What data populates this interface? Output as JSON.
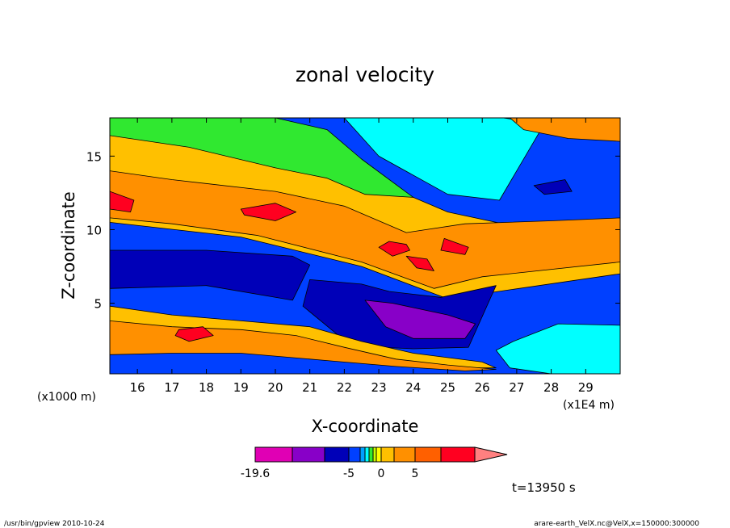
{
  "chart_data": {
    "type": "heatmap",
    "title": "zonal velocity",
    "xlabel": "X-coordinate",
    "ylabel": "Z-coordinate",
    "x_unit_label": "(x1E4 m)",
    "y_unit_label": "(x1000 m)",
    "xlim": [
      15.2,
      30.0
    ],
    "ylim": [
      0.2,
      17.6
    ],
    "x_ticks": [
      16,
      17,
      18,
      19,
      20,
      21,
      22,
      23,
      24,
      25,
      26,
      27,
      28,
      29
    ],
    "y_ticks": [
      5,
      10,
      15
    ],
    "colorbar": {
      "tick_labels": [
        "-19.6",
        "-5",
        "0",
        "5"
      ],
      "colors": [
        "#e000b4",
        "#8800c8",
        "#0000b8",
        "#0040ff",
        "#00a0ff",
        "#00ffff",
        "#30e830",
        "#c8ff00",
        "#ffff00",
        "#ffc000",
        "#ff9000",
        "#ff6000",
        "#ff0020",
        "#ff8080"
      ]
    },
    "regions": [
      {
        "level": 3,
        "x": [
          15.2,
          30.0,
          30.0,
          15.2
        ],
        "y": [
          17.6,
          17.6,
          0.2,
          0.2
        ]
      },
      {
        "level": 9,
        "x": [
          15.2,
          19.0,
          22.0,
          23.6,
          25.0,
          27.0,
          30.0,
          30.0,
          25.0,
          22.5,
          19.0,
          15.2
        ],
        "y": [
          16.6,
          15.0,
          13.8,
          12.6,
          11.2,
          10.2,
          10.0,
          7.0,
          5.3,
          7.5,
          9.5,
          10.5
        ]
      },
      {
        "level": 10,
        "x": [
          15.2,
          17.0,
          20.0,
          22.0,
          23.8,
          25.5,
          28.0,
          30.0,
          30.0,
          26.0,
          24.6,
          22.5,
          19.5,
          17.0,
          15.2
        ],
        "y": [
          14.0,
          13.4,
          12.6,
          11.6,
          9.8,
          10.4,
          10.6,
          10.8,
          7.8,
          6.8,
          6.0,
          7.8,
          9.6,
          10.4,
          10.8
        ]
      },
      {
        "level": 12,
        "x": [
          15.2,
          15.9,
          15.8,
          15.2
        ],
        "y": [
          12.6,
          12.0,
          11.2,
          11.4
        ]
      },
      {
        "level": 12,
        "x": [
          19.0,
          20.0,
          20.6,
          20.0,
          19.1
        ],
        "y": [
          11.4,
          11.8,
          11.2,
          10.6,
          11.0
        ]
      },
      {
        "level": 12,
        "x": [
          23.3,
          23.8,
          23.9,
          23.4,
          23.0
        ],
        "y": [
          9.2,
          9.0,
          8.6,
          8.2,
          8.8
        ]
      },
      {
        "level": 12,
        "x": [
          23.8,
          24.4,
          24.6,
          24.1
        ],
        "y": [
          8.2,
          8.0,
          7.2,
          7.4
        ]
      },
      {
        "level": 12,
        "x": [
          24.9,
          25.6,
          25.5,
          24.8
        ],
        "y": [
          9.4,
          8.8,
          8.3,
          8.6
        ]
      },
      {
        "level": 2,
        "x": [
          15.2,
          18.0,
          20.5,
          21.0,
          20.5,
          18.0,
          15.2
        ],
        "y": [
          8.6,
          8.6,
          8.2,
          7.6,
          5.2,
          6.2,
          6.0
        ]
      },
      {
        "level": 2,
        "x": [
          21.0,
          22.5,
          23.3,
          24.8,
          26.4,
          25.6,
          24.0,
          22.2,
          20.8
        ],
        "y": [
          6.6,
          6.3,
          5.8,
          5.4,
          6.2,
          2.0,
          1.9,
          2.1,
          4.8
        ]
      },
      {
        "level": 1,
        "x": [
          22.6,
          23.4,
          25.0,
          25.8,
          25.5,
          24.0,
          23.2
        ],
        "y": [
          5.2,
          5.0,
          4.2,
          3.6,
          2.6,
          2.6,
          3.4
        ]
      },
      {
        "level": 9,
        "x": [
          15.2,
          17.0,
          19.0,
          21.0,
          22.5,
          24.0,
          26.0,
          26.4,
          25.0,
          22.0,
          19.0,
          17.0,
          15.2
        ],
        "y": [
          4.8,
          4.2,
          3.8,
          3.4,
          2.4,
          1.6,
          1.0,
          0.6,
          0.6,
          1.2,
          2.0,
          2.0,
          1.8
        ]
      },
      {
        "level": 10,
        "x": [
          15.2,
          17.0,
          19.0,
          20.6,
          22.0,
          23.5,
          25.0,
          26.4,
          25.5,
          23.5,
          21.5,
          19.0,
          17.0,
          15.2
        ],
        "y": [
          3.8,
          3.4,
          3.2,
          2.8,
          2.0,
          1.2,
          0.8,
          0.5,
          0.4,
          0.7,
          1.1,
          1.6,
          1.6,
          1.5
        ]
      },
      {
        "level": 12,
        "x": [
          17.2,
          17.9,
          18.2,
          17.5,
          17.1
        ],
        "y": [
          3.2,
          3.4,
          2.8,
          2.4,
          2.8
        ]
      },
      {
        "level": 5,
        "x": [
          26.4,
          26.8,
          28.0,
          30.0,
          30.0,
          28.2,
          26.9
        ],
        "y": [
          1.8,
          0.6,
          0.2,
          0.2,
          3.5,
          3.6,
          2.4
        ]
      },
      {
        "level": 5,
        "x": [
          22.0,
          25.0,
          26.6,
          27.8,
          26.5,
          25.0,
          23.0
        ],
        "y": [
          17.6,
          17.6,
          17.6,
          17.2,
          12.0,
          12.4,
          15.0
        ]
      },
      {
        "level": 6,
        "x": [
          15.2,
          17.5,
          20.0,
          21.5,
          22.5,
          24.0,
          22.6,
          21.5,
          20.0,
          17.5,
          15.2
        ],
        "y": [
          17.6,
          17.6,
          17.6,
          16.8,
          14.8,
          12.2,
          12.4,
          13.5,
          14.2,
          15.6,
          16.4
        ]
      },
      {
        "level": 10,
        "x": [
          26.8,
          28.0,
          30.0,
          30.0,
          28.5,
          27.2
        ],
        "y": [
          17.6,
          17.6,
          17.6,
          16.0,
          16.2,
          16.8
        ]
      },
      {
        "level": 2,
        "x": [
          27.5,
          28.4,
          28.6,
          27.8
        ],
        "y": [
          13.0,
          13.4,
          12.6,
          12.4
        ]
      }
    ]
  }
}
